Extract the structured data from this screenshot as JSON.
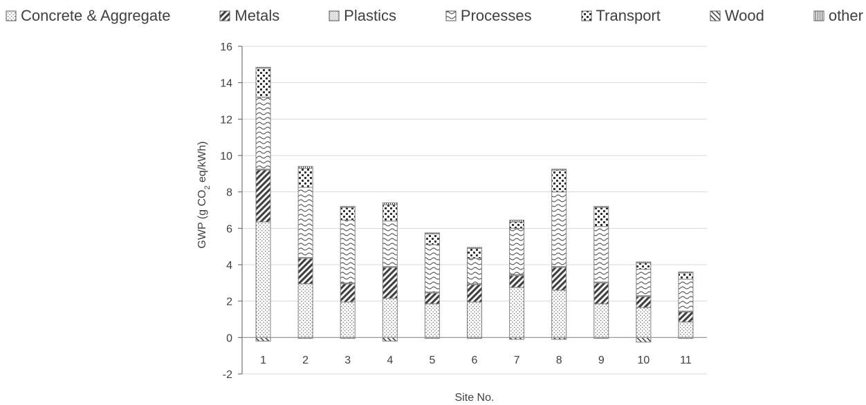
{
  "chart_data": {
    "type": "bar",
    "stacked": true,
    "title": "",
    "xlabel": "Site No.",
    "ylabel": {
      "prefix": "GWP (g CO",
      "subscript": "2",
      "suffix": " eq/kWh)"
    },
    "ylim": [
      -2,
      16
    ],
    "yticks": [
      -2,
      0,
      2,
      4,
      6,
      8,
      10,
      12,
      14,
      16
    ],
    "grid": true,
    "legend_position": "top",
    "categories": [
      "1",
      "2",
      "3",
      "4",
      "5",
      "6",
      "7",
      "8",
      "9",
      "10",
      "11"
    ],
    "series": [
      {
        "name": "Concrete & Aggregate",
        "pattern": "dots",
        "values": [
          6.35,
          2.95,
          1.95,
          2.15,
          1.85,
          1.95,
          2.75,
          2.6,
          1.85,
          1.65,
          0.85
        ]
      },
      {
        "name": "Metals",
        "pattern": "diag",
        "values": [
          2.85,
          1.4,
          1.0,
          1.7,
          0.6,
          0.95,
          0.65,
          1.25,
          1.15,
          0.6,
          0.55
        ]
      },
      {
        "name": "Plastics",
        "pattern": "fine",
        "values": [
          0.05,
          0.05,
          0.05,
          0.05,
          0.05,
          0.05,
          0.05,
          0.05,
          0.05,
          0.05,
          0.05
        ]
      },
      {
        "name": "Processes",
        "pattern": "wave",
        "values": [
          3.95,
          3.85,
          3.45,
          2.5,
          2.6,
          1.4,
          2.55,
          4.1,
          3.05,
          1.45,
          1.75
        ]
      },
      {
        "name": "Transport",
        "pattern": "check",
        "values": [
          1.6,
          1.05,
          0.7,
          0.9,
          0.6,
          0.55,
          0.35,
          1.2,
          1.05,
          0.35,
          0.35
        ]
      },
      {
        "name": "Wood",
        "pattern": "rdiag",
        "values": [
          -0.2,
          -0.05,
          -0.05,
          -0.2,
          -0.05,
          -0.05,
          -0.1,
          -0.1,
          -0.05,
          -0.25,
          -0.05
        ]
      },
      {
        "name": "other",
        "pattern": "vlines",
        "values": [
          0.05,
          0.1,
          0.05,
          0.1,
          0.05,
          0.05,
          0.1,
          0.05,
          0.05,
          0.05,
          0.05
        ]
      }
    ]
  }
}
